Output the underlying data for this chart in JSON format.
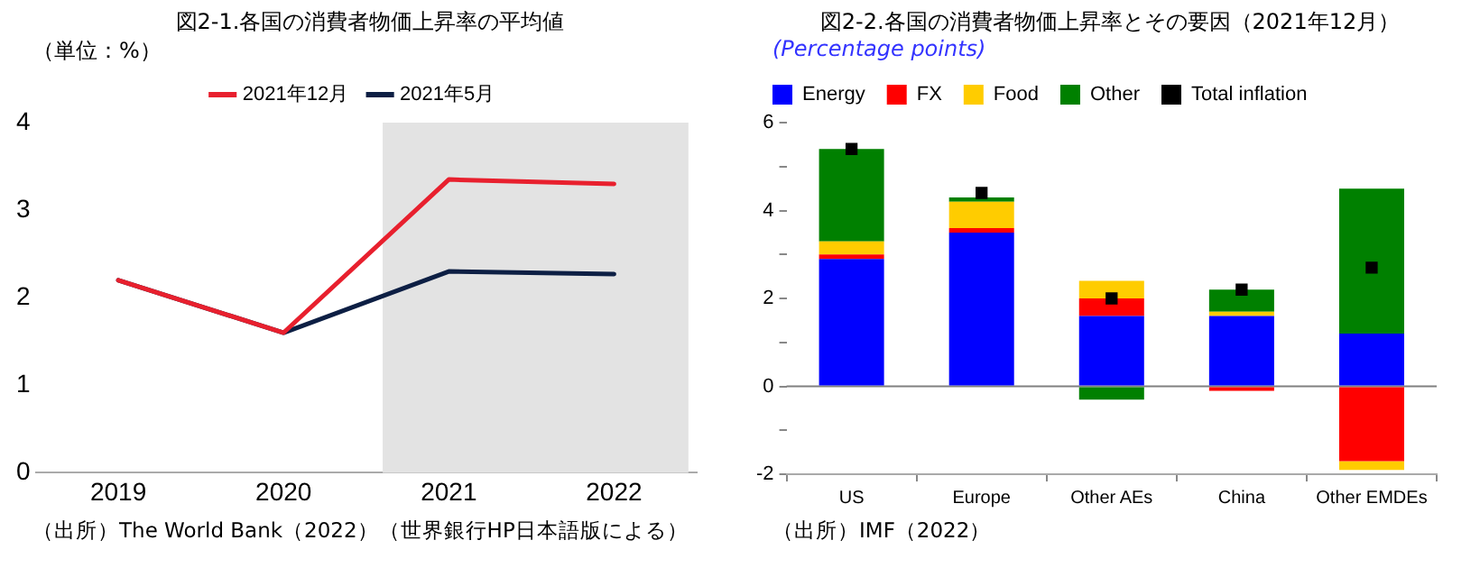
{
  "chart_data": [
    {
      "type": "line",
      "title": "図2-1.各国の消費者物価上昇率の平均値",
      "ylabel": "（単位：%）",
      "categories": [
        "2019",
        "2020",
        "2021",
        "2022"
      ],
      "series": [
        {
          "name": "2021年12月",
          "color": "#e8202e",
          "values": [
            2.2,
            1.6,
            3.35,
            3.3
          ]
        },
        {
          "name": "2021年5月",
          "color": "#0d1f44",
          "values": [
            2.2,
            1.6,
            2.3,
            2.27
          ]
        }
      ],
      "ylim": [
        0,
        4
      ],
      "yticks": [
        0,
        1,
        2,
        3,
        4
      ],
      "grid": false,
      "legend": "top",
      "marker": "none",
      "line_style": "solid",
      "bands": [
        {
          "axis": "x",
          "from": "2021",
          "to": "2022",
          "color": "#e3e3e3"
        }
      ],
      "annotations": [
        "（出所）The World Bank（2022）（世界銀行HP日本語版による）"
      ]
    },
    {
      "type": "bar",
      "title": "図2-2.各国の消費者物価上昇率とその要因（2021年12月）",
      "ylabel": "(Percentage points)",
      "stacked": true,
      "categories": [
        "US",
        "Europe",
        "Other AEs",
        "China",
        "Other EMDEs"
      ],
      "series": [
        {
          "name": "Energy",
          "color": "#0000ff",
          "values": [
            2.9,
            3.5,
            1.6,
            1.6,
            1.2
          ]
        },
        {
          "name": "FX",
          "color": "#ff0000",
          "values": [
            0.1,
            0.1,
            0.4,
            -0.1,
            -1.7
          ]
        },
        {
          "name": "Food",
          "color": "#ffcc00",
          "values": [
            0.3,
            0.6,
            0.4,
            0.1,
            -0.2
          ]
        },
        {
          "name": "Other",
          "color": "#008000",
          "values": [
            2.1,
            0.1,
            -0.3,
            0.5,
            3.3
          ]
        },
        {
          "name": "Total inflation",
          "type": "scatter",
          "marker": "square",
          "color": "#000000",
          "x": [
            "US",
            "Europe",
            "Other AEs",
            "China",
            "Other EMDEs"
          ],
          "values": [
            5.4,
            4.4,
            2.0,
            2.2,
            2.7
          ]
        }
      ],
      "ylim": [
        -2,
        6
      ],
      "yticks": [
        -2,
        {
          "value": -1,
          "label": null
        },
        0,
        {
          "value": 1,
          "label": null
        },
        2,
        {
          "value": 3,
          "label": null
        },
        4,
        {
          "value": 5,
          "label": null
        },
        6
      ],
      "grid": false,
      "legend": "top left",
      "ref_lines": [
        {
          "axis": "y",
          "value": 0,
          "color": "#808080"
        }
      ],
      "annotations": [
        "（出所）IMF（2022）"
      ]
    }
  ]
}
